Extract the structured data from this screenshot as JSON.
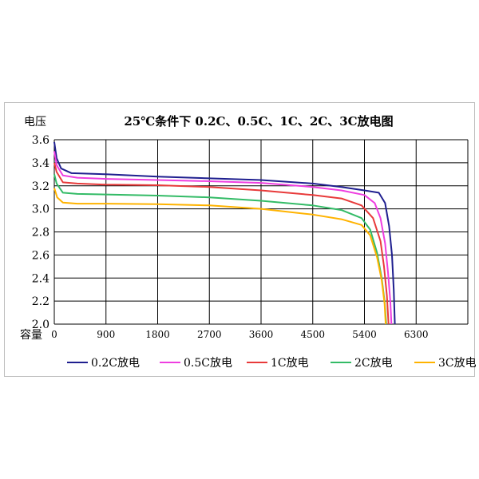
{
  "chart_data": {
    "type": "line",
    "title": "25℃条件下 0.2C、0.5C、1C、2C、3C放电图",
    "ylabel": "电压",
    "xlabel": "容量",
    "xlim": [
      0,
      7200
    ],
    "ylim": [
      2.0,
      3.6
    ],
    "x_ticks": [
      0,
      900,
      1800,
      2700,
      3600,
      4500,
      5400,
      6300
    ],
    "y_ticks": [
      2.0,
      2.2,
      2.4,
      2.6,
      2.8,
      3.0,
      3.2,
      3.4,
      3.6
    ],
    "x_tick_labels": [
      "0",
      "900",
      "1800",
      "2700",
      "3600",
      "4500",
      "5400",
      "6300"
    ],
    "y_tick_labels": [
      "2.0",
      "2.2",
      "2.4",
      "2.6",
      "2.8",
      "3.0",
      "3.2",
      "3.4",
      "3.6"
    ],
    "grid": "horizontal and vertical",
    "legend_position": "bottom",
    "series": [
      {
        "name": "0.2C放电",
        "color": "#1f1f8f",
        "points": [
          [
            0,
            3.58
          ],
          [
            40,
            3.44
          ],
          [
            120,
            3.35
          ],
          [
            300,
            3.31
          ],
          [
            900,
            3.3
          ],
          [
            1800,
            3.28
          ],
          [
            2700,
            3.265
          ],
          [
            3600,
            3.25
          ],
          [
            4500,
            3.22
          ],
          [
            5000,
            3.19
          ],
          [
            5400,
            3.16
          ],
          [
            5650,
            3.14
          ],
          [
            5760,
            3.05
          ],
          [
            5830,
            2.85
          ],
          [
            5880,
            2.6
          ],
          [
            5910,
            2.3
          ],
          [
            5930,
            2.0
          ]
        ]
      },
      {
        "name": "0.5C放电",
        "color": "#ee3ee0",
        "points": [
          [
            0,
            3.5
          ],
          [
            40,
            3.38
          ],
          [
            150,
            3.29
          ],
          [
            400,
            3.27
          ],
          [
            900,
            3.26
          ],
          [
            1800,
            3.25
          ],
          [
            2700,
            3.24
          ],
          [
            3600,
            3.225
          ],
          [
            4500,
            3.19
          ],
          [
            5000,
            3.16
          ],
          [
            5400,
            3.12
          ],
          [
            5580,
            3.05
          ],
          [
            5680,
            2.92
          ],
          [
            5760,
            2.7
          ],
          [
            5810,
            2.45
          ],
          [
            5850,
            2.2
          ],
          [
            5870,
            2.0
          ]
        ]
      },
      {
        "name": "1C放电",
        "color": "#e83a3a",
        "points": [
          [
            0,
            3.4
          ],
          [
            40,
            3.32
          ],
          [
            150,
            3.23
          ],
          [
            400,
            3.22
          ],
          [
            900,
            3.21
          ],
          [
            1800,
            3.205
          ],
          [
            2700,
            3.19
          ],
          [
            3600,
            3.16
          ],
          [
            4500,
            3.12
          ],
          [
            5000,
            3.09
          ],
          [
            5350,
            3.03
          ],
          [
            5550,
            2.92
          ],
          [
            5680,
            2.72
          ],
          [
            5740,
            2.5
          ],
          [
            5790,
            2.25
          ],
          [
            5820,
            2.0
          ]
        ]
      },
      {
        "name": "2C放电",
        "color": "#33bb66",
        "points": [
          [
            0,
            3.3
          ],
          [
            40,
            3.22
          ],
          [
            150,
            3.14
          ],
          [
            400,
            3.13
          ],
          [
            900,
            3.125
          ],
          [
            1800,
            3.115
          ],
          [
            2700,
            3.1
          ],
          [
            3600,
            3.07
          ],
          [
            4500,
            3.03
          ],
          [
            5000,
            2.99
          ],
          [
            5350,
            2.92
          ],
          [
            5500,
            2.82
          ],
          [
            5620,
            2.62
          ],
          [
            5700,
            2.4
          ],
          [
            5750,
            2.2
          ],
          [
            5780,
            2.0
          ]
        ]
      },
      {
        "name": "3C放电",
        "color": "#ffb300",
        "points": [
          [
            0,
            3.18
          ],
          [
            50,
            3.1
          ],
          [
            150,
            3.055
          ],
          [
            400,
            3.045
          ],
          [
            900,
            3.045
          ],
          [
            1800,
            3.04
          ],
          [
            2700,
            3.03
          ],
          [
            3600,
            3.0
          ],
          [
            4500,
            2.95
          ],
          [
            5000,
            2.91
          ],
          [
            5350,
            2.86
          ],
          [
            5500,
            2.77
          ],
          [
            5620,
            2.58
          ],
          [
            5700,
            2.38
          ],
          [
            5750,
            2.18
          ],
          [
            5770,
            2.0
          ]
        ]
      }
    ]
  }
}
